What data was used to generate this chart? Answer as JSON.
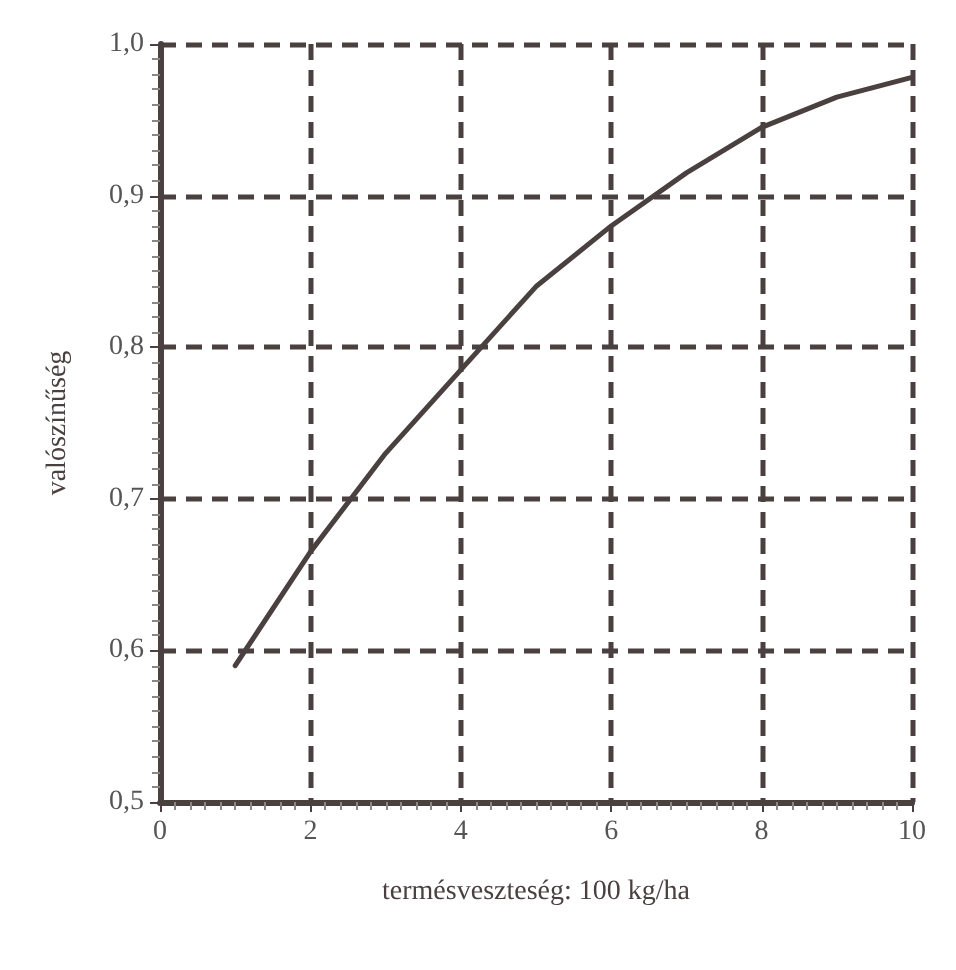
{
  "chart_data": {
    "type": "line",
    "xlabel": "termésveszteség: 100 kg/ha",
    "ylabel": "valószínűség",
    "x": [
      1,
      2,
      3,
      4,
      5,
      6,
      7,
      8,
      9,
      10
    ],
    "series": [
      {
        "color": "#4a4040",
        "values": [
          0.59,
          0.665,
          0.73,
          0.785,
          0.84,
          0.88,
          0.915,
          0.945,
          0.965,
          0.978
        ]
      }
    ],
    "xlim": [
      0,
      10
    ],
    "xticks": [
      0,
      2,
      4,
      6,
      8,
      10
    ],
    "ylim": [
      0.5,
      1.0
    ],
    "yticks": [
      {
        "value": 0.5,
        "label": "0,5"
      },
      {
        "value": 0.6,
        "label": "0,6"
      },
      {
        "value": 0.7,
        "label": "0,7"
      },
      {
        "value": 0.8,
        "label": "0,8"
      },
      {
        "value": 0.9,
        "label": "0,9"
      },
      {
        "value": 1.0,
        "label": "1,0"
      }
    ],
    "grid": true,
    "marker": "none",
    "line_style": "solid"
  }
}
